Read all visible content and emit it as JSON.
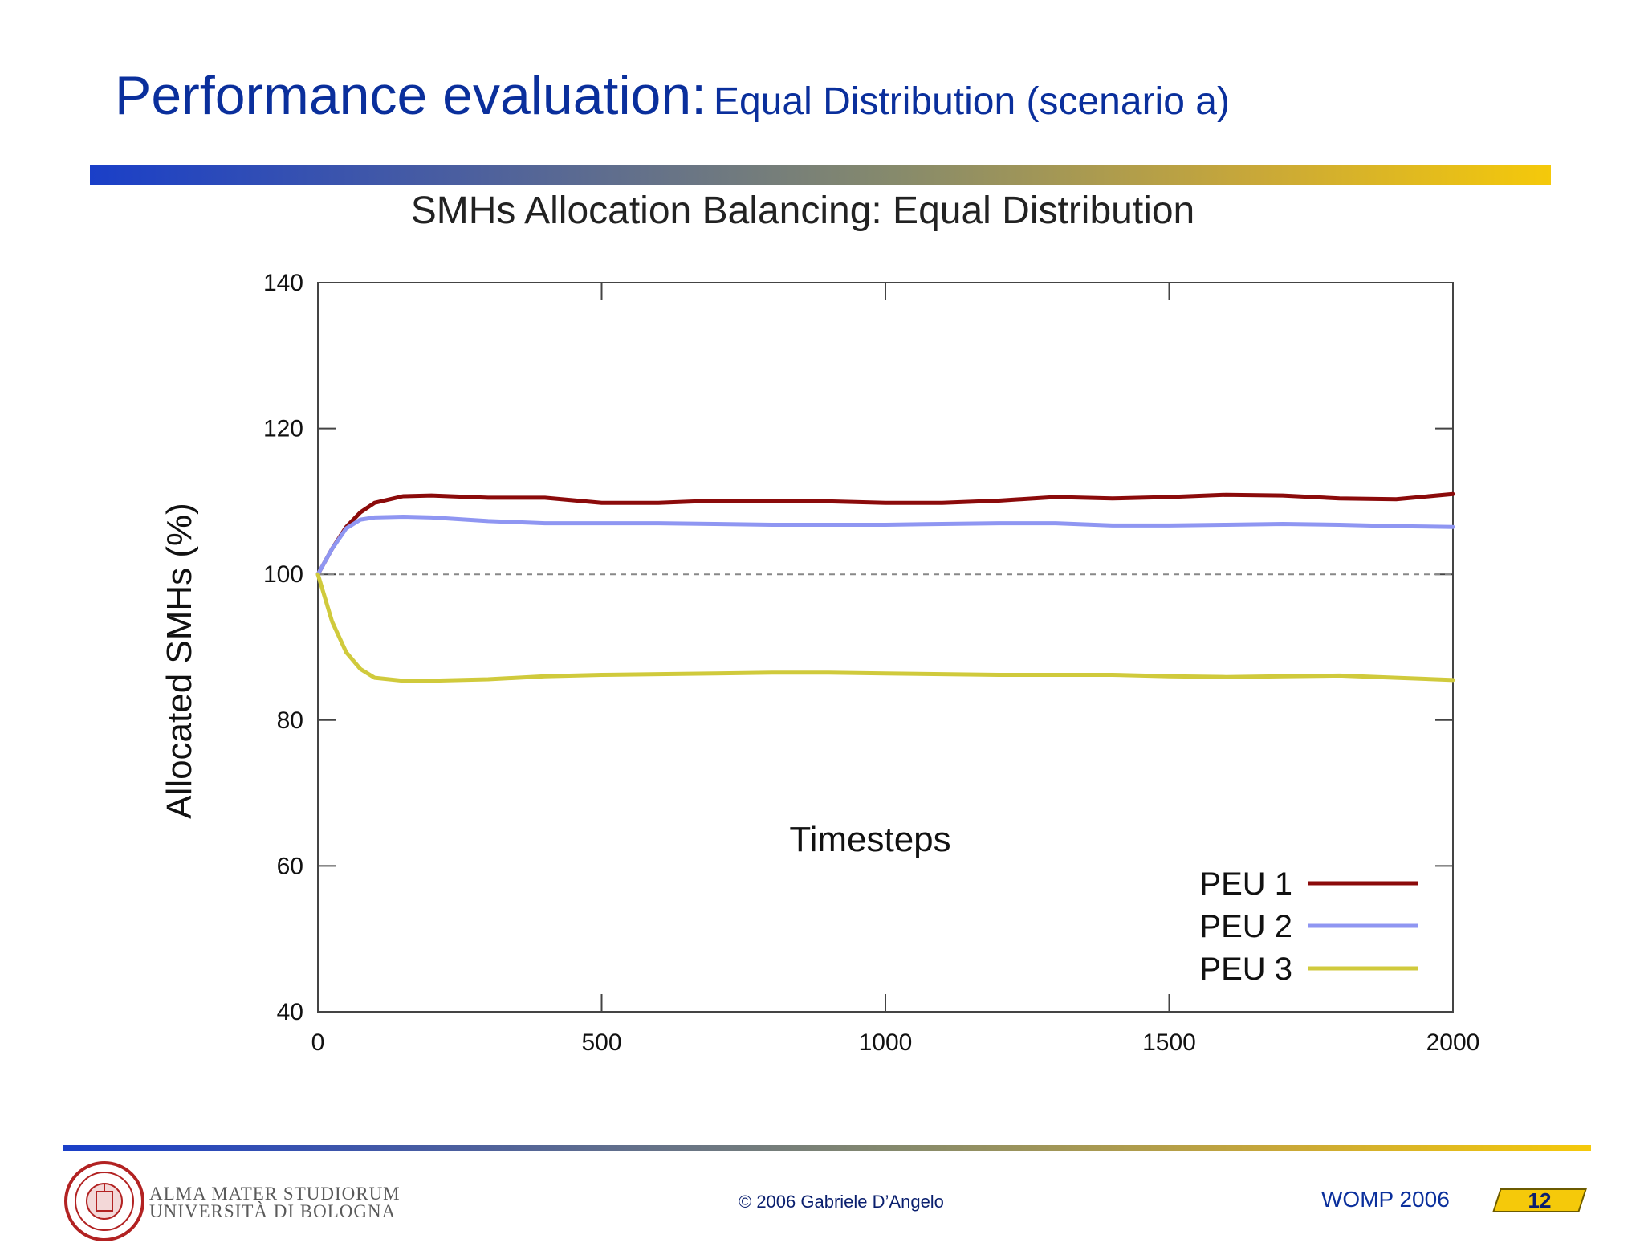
{
  "slide": {
    "title_main": "Performance evaluation:",
    "title_sub": "Equal Distribution (scenario a)"
  },
  "chart_data": {
    "type": "line",
    "title": "SMHs Allocation Balancing: Equal Distribution",
    "xlabel": "Timesteps",
    "ylabel": "Allocated SMHs (%)",
    "xlim": [
      0,
      2000
    ],
    "ylim": [
      40,
      140
    ],
    "xticks": [
      0,
      500,
      1000,
      1500,
      2000
    ],
    "yticks": [
      40,
      60,
      80,
      100,
      120,
      140
    ],
    "reference_line": 100,
    "legend_position": "bottom-right",
    "series": [
      {
        "name": "PEU 1",
        "color": "#8b0a0a",
        "x": [
          0,
          25,
          50,
          75,
          100,
          150,
          200,
          300,
          400,
          500,
          600,
          700,
          800,
          900,
          1000,
          1100,
          1200,
          1300,
          1400,
          1500,
          1600,
          1700,
          1800,
          1900,
          2000
        ],
        "y": [
          100,
          103.5,
          106.5,
          108.5,
          109.8,
          110.7,
          110.8,
          110.5,
          110.5,
          109.8,
          109.8,
          110.1,
          110.1,
          110.0,
          109.8,
          109.8,
          110.1,
          110.6,
          110.4,
          110.6,
          110.9,
          110.8,
          110.4,
          110.3,
          111.0
        ]
      },
      {
        "name": "PEU 2",
        "color": "#8f96f2",
        "x": [
          0,
          25,
          50,
          75,
          100,
          150,
          200,
          300,
          400,
          500,
          600,
          700,
          800,
          900,
          1000,
          1100,
          1200,
          1300,
          1400,
          1500,
          1600,
          1700,
          1800,
          1900,
          2000
        ],
        "y": [
          100,
          103.5,
          106.3,
          107.5,
          107.8,
          107.9,
          107.8,
          107.3,
          107.0,
          107.0,
          107.0,
          106.9,
          106.8,
          106.8,
          106.8,
          106.9,
          107.0,
          107.0,
          106.7,
          106.7,
          106.8,
          106.9,
          106.8,
          106.6,
          106.5
        ]
      },
      {
        "name": "PEU 3",
        "color": "#d0ca3c",
        "x": [
          0,
          25,
          50,
          75,
          100,
          150,
          200,
          300,
          400,
          500,
          600,
          700,
          800,
          900,
          1000,
          1100,
          1200,
          1300,
          1400,
          1500,
          1600,
          1700,
          1800,
          1900,
          2000
        ],
        "y": [
          100,
          93.5,
          89.3,
          87.0,
          85.8,
          85.4,
          85.4,
          85.6,
          86.0,
          86.2,
          86.3,
          86.4,
          86.5,
          86.5,
          86.4,
          86.3,
          86.2,
          86.2,
          86.2,
          86.0,
          85.9,
          86.0,
          86.1,
          85.8,
          85.5
        ]
      }
    ]
  },
  "footer": {
    "university_line1": "ALMA MATER STUDIORUM",
    "university_line2": "UNIVERSITÀ DI BOLOGNA",
    "copyright": "© 2006 Gabriele D’Angelo",
    "conference": "WOMP 2006",
    "page_number": "12"
  }
}
